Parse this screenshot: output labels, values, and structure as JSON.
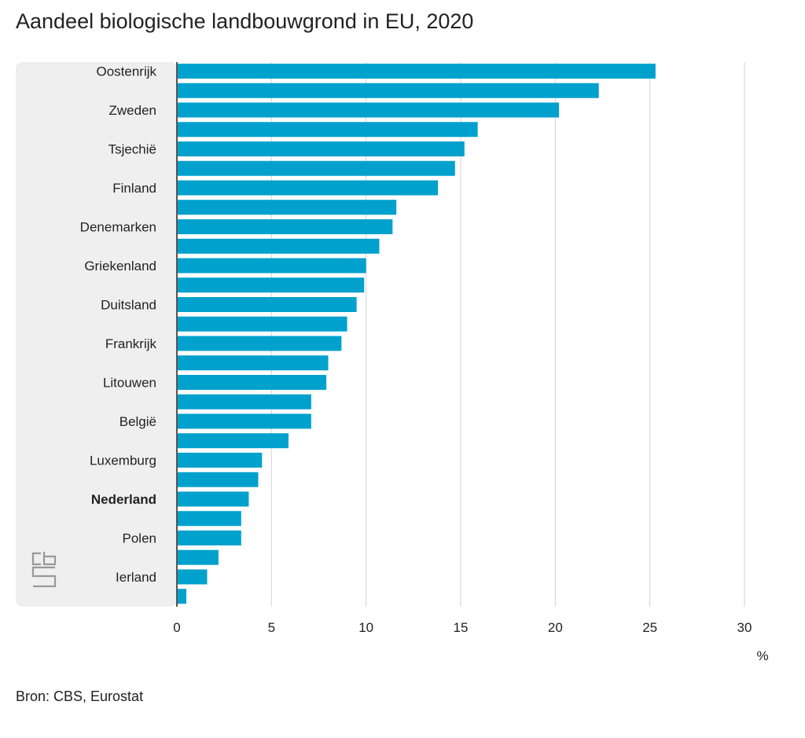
{
  "title": "Aandeel biologische landbouwgrond in EU, 2020",
  "source": "Bron: CBS, Eurostat",
  "logo_text": "cbs",
  "colors": {
    "bar": "#00A1CD",
    "label_bg": "#EFEFEF",
    "grid": "#D2D2D2",
    "axis": "#555555",
    "text": "#222222"
  },
  "chart_data": {
    "type": "bar",
    "orientation": "horizontal",
    "title": "Aandeel biologische landbouwgrond in EU, 2020",
    "xlabel": "%",
    "ylabel": "",
    "xlim": [
      0,
      30
    ],
    "xticks": [
      "0",
      "5",
      "10",
      "15",
      "20",
      "25",
      "30"
    ],
    "grid": true,
    "highlight_label": "Nederland",
    "categories": [
      {
        "label": "Oostenrijk",
        "value": 25.3
      },
      {
        "label": "",
        "value": 22.3
      },
      {
        "label": "Zweden",
        "value": 20.2
      },
      {
        "label": "",
        "value": 15.9
      },
      {
        "label": "Tsjechië",
        "value": 15.2
      },
      {
        "label": "",
        "value": 14.7
      },
      {
        "label": "Finland",
        "value": 13.8
      },
      {
        "label": "",
        "value": 11.6
      },
      {
        "label": "Denemarken",
        "value": 11.4
      },
      {
        "label": "",
        "value": 10.7
      },
      {
        "label": "Griekenland",
        "value": 10.0
      },
      {
        "label": "",
        "value": 9.9
      },
      {
        "label": "Duitsland",
        "value": 9.5
      },
      {
        "label": "",
        "value": 9.0
      },
      {
        "label": "Frankrijk",
        "value": 8.7
      },
      {
        "label": "",
        "value": 8.0
      },
      {
        "label": "Litouwen",
        "value": 7.9
      },
      {
        "label": "",
        "value": 7.1
      },
      {
        "label": "België",
        "value": 7.1
      },
      {
        "label": "",
        "value": 5.9
      },
      {
        "label": "Luxemburg",
        "value": 4.5
      },
      {
        "label": "",
        "value": 4.3
      },
      {
        "label": "Nederland",
        "value": 3.8
      },
      {
        "label": "",
        "value": 3.4
      },
      {
        "label": "Polen",
        "value": 3.4
      },
      {
        "label": "",
        "value": 2.2
      },
      {
        "label": "Ierland",
        "value": 1.6
      },
      {
        "label": "",
        "value": 0.5
      }
    ]
  }
}
